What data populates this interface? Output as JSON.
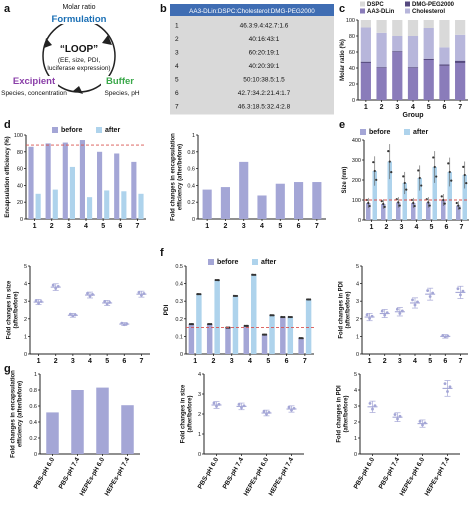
{
  "colors": {
    "before": "#a4a6d6",
    "after": "#aed3ec",
    "dspc": "#d9d9d9",
    "dmg": "#55497f",
    "aa3": "#8a7cba",
    "chol": "#b7b6db",
    "ref": "#d9534f",
    "purple_text": "#8a3ea8",
    "green_text": "#3aa84a",
    "blue_text": "#1a6fb5",
    "table_header": "#3f6db3"
  },
  "panel_a": {
    "letter": "a",
    "top_label": "Molar ratio",
    "top": "Formulation",
    "center": "“LOOP”",
    "center_sub1": "(EE, size, PDI,",
    "center_sub2": "luciferase expression)",
    "left": "Excipient",
    "left_sub": "Species, concentration",
    "right": "Buffer",
    "right_sub": "Species, pH"
  },
  "panel_b": {
    "letter": "b",
    "header": "AA3-DLin:DSPC:Cholesterol:DMG-PEG2000",
    "rows": [
      {
        "id": "1",
        "ratio": "46.3:9.4:42.7:1.6"
      },
      {
        "id": "2",
        "ratio": "40:16:43:1"
      },
      {
        "id": "3",
        "ratio": "60:20:19:1"
      },
      {
        "id": "4",
        "ratio": "40:20:39:1"
      },
      {
        "id": "5",
        "ratio": "50:10:38.5:1.5"
      },
      {
        "id": "6",
        "ratio": "42.7:34.2:21.4:1.7"
      },
      {
        "id": "7",
        "ratio": "46.3:18.5:32.4:2.8"
      }
    ]
  },
  "panel_c": {
    "letter": "c"
  },
  "panel_d": {
    "letter": "d"
  },
  "panel_e": {
    "letter": "e"
  },
  "panel_f": {
    "letter": "f"
  },
  "panel_g": {
    "letter": "g"
  },
  "legend": {
    "before": "before",
    "after": "after"
  },
  "chart_data": [
    {
      "id": "c",
      "type": "bar",
      "stacked": true,
      "categories": [
        "1",
        "2",
        "3",
        "4",
        "5",
        "6",
        "7"
      ],
      "xlabel": "Group",
      "ylabel": "Molar ratio (%)",
      "ylim": [
        0,
        100
      ],
      "yticks": [
        0,
        20,
        40,
        60,
        80,
        100
      ],
      "legend": [
        "DSPC",
        "DMG-PEG2000",
        "AA3-DLin",
        "Cholesterol"
      ],
      "series": [
        {
          "name": "AA3-DLin",
          "values": [
            46.3,
            40,
            60,
            40,
            50,
            42.7,
            46.3
          ]
        },
        {
          "name": "DMG-PEG2000",
          "values": [
            1.6,
            1,
            1,
            1,
            1.5,
            1.7,
            2.8
          ]
        },
        {
          "name": "Cholesterol",
          "values": [
            42.7,
            43,
            19,
            39,
            38.5,
            21.4,
            32.4
          ]
        },
        {
          "name": "DSPC",
          "values": [
            9.4,
            16,
            20,
            20,
            10,
            34.2,
            18.5
          ]
        }
      ]
    },
    {
      "id": "d1",
      "type": "bar",
      "categories": [
        "1",
        "2",
        "3",
        "4",
        "5",
        "6",
        "7"
      ],
      "ylabel": "Encapsulation efficiency (%)",
      "ylim": [
        0,
        100
      ],
      "yticks": [
        0,
        20,
        40,
        60,
        80,
        100
      ],
      "reference_line": 88,
      "legend": [
        "before",
        "after"
      ],
      "series": [
        {
          "name": "before",
          "values": [
            86,
            90,
            91,
            94,
            80,
            78,
            68
          ]
        },
        {
          "name": "after",
          "values": [
            30,
            35,
            62,
            26,
            34,
            33,
            30
          ]
        }
      ]
    },
    {
      "id": "d2",
      "type": "bar",
      "categories": [
        "1",
        "2",
        "3",
        "4",
        "5",
        "6",
        "7"
      ],
      "ylabel": "Fold changes in encapsulation efficiency (after/before)",
      "ylim": [
        0,
        1.0
      ],
      "yticks": [
        0,
        0.2,
        0.4,
        0.6,
        0.8,
        1.0
      ],
      "values": [
        0.35,
        0.38,
        0.68,
        0.28,
        0.42,
        0.44,
        0.44
      ]
    },
    {
      "id": "e1",
      "type": "bar",
      "categories": [
        "1",
        "2",
        "3",
        "4",
        "5",
        "6",
        "7"
      ],
      "ylabel": "Size (nm)",
      "ylim": [
        0,
        400
      ],
      "yticks": [
        0,
        100,
        200,
        300,
        400
      ],
      "reference_line": 100,
      "legend": [
        "before",
        "after"
      ],
      "series": [
        {
          "name": "before",
          "values": [
            85,
            80,
            88,
            85,
            88,
            100,
            72
          ]
        },
        {
          "name": "after",
          "values": [
            245,
            292,
            185,
            210,
            265,
            240,
            225
          ]
        }
      ]
    },
    {
      "id": "e2",
      "type": "scatter",
      "categories": [
        "1",
        "2",
        "3",
        "4",
        "5",
        "6",
        "7"
      ],
      "ylabel": "Fold changes in size (after/before)",
      "ylim": [
        0,
        5
      ],
      "yticks": [
        0,
        1,
        2,
        3,
        4,
        5
      ],
      "values": [
        2.95,
        3.8,
        2.2,
        3.35,
        2.9,
        1.7,
        3.4
      ]
    },
    {
      "id": "f1",
      "type": "bar",
      "categories": [
        "1",
        "2",
        "3",
        "4",
        "5",
        "6",
        "7"
      ],
      "ylabel": "PDI",
      "ylim": [
        0,
        0.5
      ],
      "yticks": [
        0,
        0.1,
        0.2,
        0.3,
        0.4,
        0.5
      ],
      "reference_line": 0.15,
      "legend": [
        "before",
        "after"
      ],
      "series": [
        {
          "name": "before",
          "values": [
            0.17,
            0.17,
            0.15,
            0.16,
            0.11,
            0.21,
            0.09
          ]
        },
        {
          "name": "after",
          "values": [
            0.34,
            0.42,
            0.33,
            0.45,
            0.22,
            0.21,
            0.31
          ]
        }
      ]
    },
    {
      "id": "f2",
      "type": "scatter",
      "categories": [
        "1",
        "2",
        "3",
        "4",
        "5",
        "6",
        "7"
      ],
      "ylabel": "Fold changes in PDI (after/before)",
      "ylim": [
        0,
        5
      ],
      "yticks": [
        0,
        1,
        2,
        3,
        4,
        5
      ],
      "values": [
        2.1,
        2.3,
        2.4,
        2.9,
        3.4,
        1.0,
        3.5
      ]
    },
    {
      "id": "g1",
      "type": "bar",
      "categories": [
        "PBS-pH 6.0",
        "PBS-pH 7.4",
        "HEPEs-pH 6.0",
        "HEPEs-pH 7.4"
      ],
      "ylabel": "Fold changes in encapsulation efficiency (after/before)",
      "ylim": [
        0,
        1.0
      ],
      "yticks": [
        0,
        0.2,
        0.4,
        0.6,
        0.8,
        1.0
      ],
      "values": [
        0.52,
        0.8,
        0.83,
        0.61
      ]
    },
    {
      "id": "g2",
      "type": "scatter",
      "categories": [
        "PBS-pH 6.0",
        "PBS-pH 7.4",
        "HEPEs-pH 6.0",
        "HEPEs-pH 7.4"
      ],
      "ylabel": "Fold changes in size (after/before)",
      "ylim": [
        0,
        4
      ],
      "yticks": [
        0,
        1,
        2,
        3,
        4
      ],
      "values": [
        2.45,
        2.38,
        2.05,
        2.25
      ]
    },
    {
      "id": "g3",
      "type": "scatter",
      "categories": [
        "PBS-pH 6.0",
        "PBS-pH 7.4",
        "HEPEs-pH 6.0",
        "HEPEs-pH 7.4"
      ],
      "ylabel": "Fold changes in PDI (after/before)",
      "ylim": [
        0,
        5
      ],
      "yticks": [
        0,
        1,
        2,
        3,
        4,
        5
      ],
      "values": [
        2.95,
        2.3,
        1.9,
        4.1
      ]
    }
  ]
}
